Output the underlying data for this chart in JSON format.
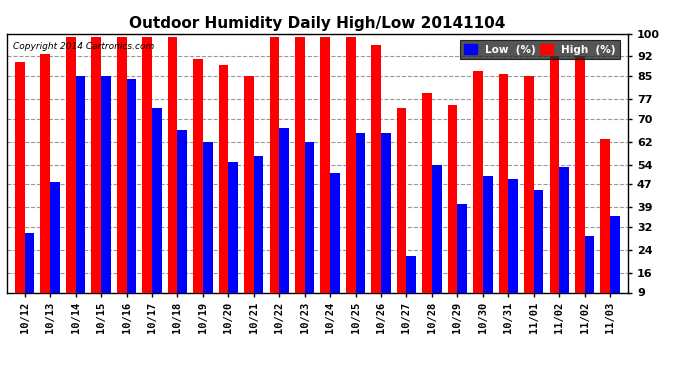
{
  "title": "Outdoor Humidity Daily High/Low 20141104",
  "copyright": "Copyright 2014 Cartronics.com",
  "categories": [
    "10/12",
    "10/13",
    "10/14",
    "10/15",
    "10/16",
    "10/17",
    "10/18",
    "10/19",
    "10/20",
    "10/21",
    "10/22",
    "10/23",
    "10/24",
    "10/25",
    "10/26",
    "10/27",
    "10/28",
    "10/29",
    "10/30",
    "10/31",
    "11/01",
    "11/02",
    "11/02",
    "11/03"
  ],
  "high": [
    90,
    93,
    99,
    99,
    99,
    99,
    99,
    91,
    89,
    85,
    99,
    99,
    99,
    99,
    96,
    74,
    79,
    75,
    87,
    86,
    85,
    92,
    92,
    63
  ],
  "low": [
    30,
    48,
    85,
    85,
    84,
    74,
    66,
    62,
    55,
    57,
    67,
    62,
    51,
    65,
    65,
    22,
    54,
    40,
    50,
    49,
    45,
    53,
    29,
    36
  ],
  "bar_width": 0.38,
  "bg_color": "#ffffff",
  "high_color": "#ff0000",
  "low_color": "#0000ff",
  "grid_color": "#999999",
  "yticks": [
    9,
    16,
    24,
    32,
    39,
    47,
    54,
    62,
    70,
    77,
    85,
    92,
    100
  ],
  "ymin": 9,
  "ymax": 100,
  "title_fontsize": 11,
  "legend_label_low": "Low  (%)",
  "legend_label_high": "High  (%)"
}
